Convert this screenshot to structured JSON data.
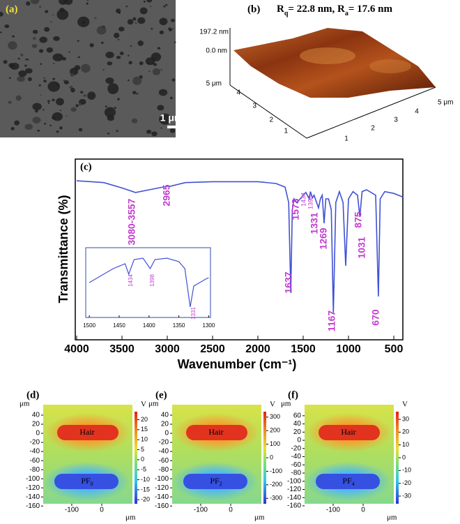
{
  "panel_a": {
    "label": "(a)",
    "scale_bar": "1 μm"
  },
  "panel_b": {
    "label": "(b)",
    "title": [
      "R",
      "q",
      "= 22.8 nm, R",
      "a",
      "= 17.6 nm"
    ],
    "z_ticks": [
      {
        "value": 197.2,
        "label": "197.2 nm"
      },
      {
        "value": 0,
        "label": "0.0 nm"
      }
    ],
    "y_ticks": [
      {
        "value": 5,
        "label": "5 μm"
      },
      4,
      3,
      2,
      1
    ],
    "x_ticks": [
      1,
      2,
      3,
      4,
      {
        "value": 5,
        "label": "5 μm"
      }
    ]
  },
  "chart_data": [
    {
      "type": "line",
      "panel_label": "(c)",
      "x_label": "Wavenumber (cm⁻¹)",
      "y_label": "Transmittance (%)",
      "color": "#3f51d4",
      "x": [
        4000,
        3700,
        3500,
        3350,
        3200,
        3000,
        2965,
        2800,
        2500,
        2000,
        1800,
        1700,
        1660,
        1637,
        1620,
        1600,
        1573,
        1550,
        1500,
        1470,
        1434,
        1420,
        1398,
        1380,
        1331,
        1310,
        1290,
        1269,
        1250,
        1220,
        1190,
        1167,
        1140,
        1100,
        1060,
        1031,
        1000,
        950,
        900,
        875,
        850,
        800,
        700,
        670,
        650,
        600,
        500,
        450,
        400
      ],
      "values": [
        88,
        87,
        84,
        81.5,
        83,
        85,
        85,
        87,
        87.5,
        87.5,
        86.5,
        84.5,
        76,
        26,
        72,
        78,
        76,
        77,
        80,
        81.5,
        78,
        82,
        78.5,
        80,
        73,
        78,
        80,
        64.5,
        78,
        78,
        72,
        15,
        76,
        82,
        76,
        41,
        78,
        82,
        80,
        68,
        82,
        83,
        80,
        24,
        78,
        82,
        81,
        80,
        79
      ],
      "xlim": [
        4000,
        400
      ],
      "ylim": [
        0,
        100
      ],
      "xticks": [
        4000,
        3500,
        3000,
        2500,
        2000,
        1500,
        1000,
        500
      ],
      "annotations": [
        "3080-3557",
        2965,
        1573,
        1434,
        1398,
        1331,
        1269,
        1637,
        1167,
        1031,
        875,
        670
      ]
    },
    {
      "type": "line",
      "color": "#3f51d4",
      "x": [
        1500,
        1460,
        1440,
        1434,
        1425,
        1410,
        1398,
        1390,
        1370,
        1350,
        1340,
        1331,
        1325,
        1315,
        1305,
        1300
      ],
      "values": [
        50,
        70,
        77,
        62,
        83,
        85,
        70,
        83,
        85,
        80,
        70,
        15,
        45,
        50,
        55,
        57
      ],
      "xlim": [
        1506,
        1297
      ],
      "ylim": [
        0,
        100
      ],
      "xticks": [
        1500,
        1450,
        1400,
        1350,
        1300
      ],
      "annotations": [
        1434,
        1398,
        1331
      ]
    },
    {
      "type": "heatmap",
      "panel_label": "(d)",
      "x_unit": "μm",
      "y_unit": "μm",
      "c_unit": "V",
      "xlim": [
        -195,
        102
      ],
      "ylim": [
        63,
        -155
      ],
      "xticks": [
        -100,
        0
      ],
      "yticks": [
        40,
        20,
        0,
        -20,
        -40,
        -60,
        -80,
        -100,
        -120,
        -140,
        -160
      ],
      "clim": [
        24,
        -22
      ],
      "cticks": [
        20,
        15,
        10,
        5,
        0,
        -5,
        -10,
        -15,
        -20
      ],
      "regions": [
        [
          "Hair"
        ],
        [
          "PF",
          "0"
        ]
      ]
    },
    {
      "type": "heatmap",
      "panel_label": "(e)",
      "x_unit": "μm",
      "y_unit": "μm",
      "c_unit": "V",
      "xlim": [
        -195,
        102
      ],
      "ylim": [
        63,
        -155
      ],
      "xticks": [
        -100,
        0
      ],
      "yticks": [
        40,
        20,
        0,
        -20,
        -40,
        -60,
        -80,
        -100,
        -120,
        -140,
        -160
      ],
      "clim": [
        340,
        -340
      ],
      "cticks": [
        300,
        200,
        100,
        0,
        -100,
        -200,
        -300
      ],
      "regions": [
        [
          "Hair"
        ],
        [
          "PF",
          "2"
        ]
      ]
    },
    {
      "type": "heatmap",
      "panel_label": "(f)",
      "x_unit": "μm",
      "y_unit": "μm",
      "c_unit": "V",
      "xlim": [
        -195,
        102
      ],
      "ylim": [
        87,
        -155
      ],
      "xticks": [
        -100,
        0
      ],
      "yticks": [
        60,
        40,
        20,
        0,
        -20,
        -40,
        -60,
        -80,
        -100,
        -120,
        -140,
        -160
      ],
      "clim": [
        36,
        -36
      ],
      "cticks": [
        30,
        20,
        10,
        0,
        -10,
        -20,
        -30
      ],
      "regions": [
        [
          "Hair"
        ],
        [
          "PF",
          "4"
        ]
      ]
    }
  ]
}
